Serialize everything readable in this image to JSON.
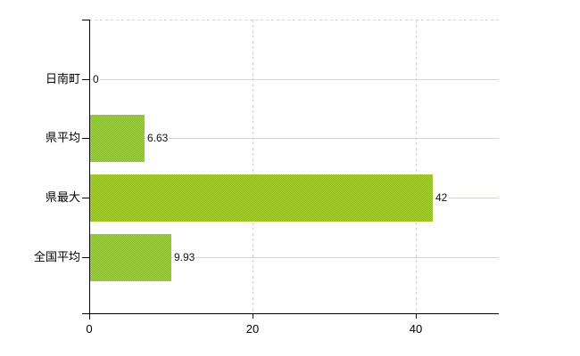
{
  "chart_data": {
    "type": "bar",
    "orientation": "horizontal",
    "title": "",
    "xlabel": "",
    "ylabel": "",
    "categories": [
      "日南町",
      "県平均",
      "県最大",
      "全国平均"
    ],
    "values": [
      0,
      6.63,
      42,
      9.93
    ],
    "value_labels": [
      "0",
      "6.63",
      "42",
      "9.93"
    ],
    "xticks": [
      0,
      20,
      40
    ],
    "xtick_labels": [
      "0",
      "20",
      "40"
    ],
    "xlim": [
      0,
      50.2
    ],
    "grid": "on",
    "legend": "none"
  },
  "colors": {
    "background": "#ffffff",
    "bar_fill_light": "#a9d233",
    "bar_fill_dark": "#87ba2a",
    "bar_fill_average": "#98c72f",
    "hgrid": "#d2d9c8",
    "vgrid": "#d2d2d2",
    "top_border": "#d4d0d4",
    "axis": "#000000",
    "text": "#000000"
  }
}
